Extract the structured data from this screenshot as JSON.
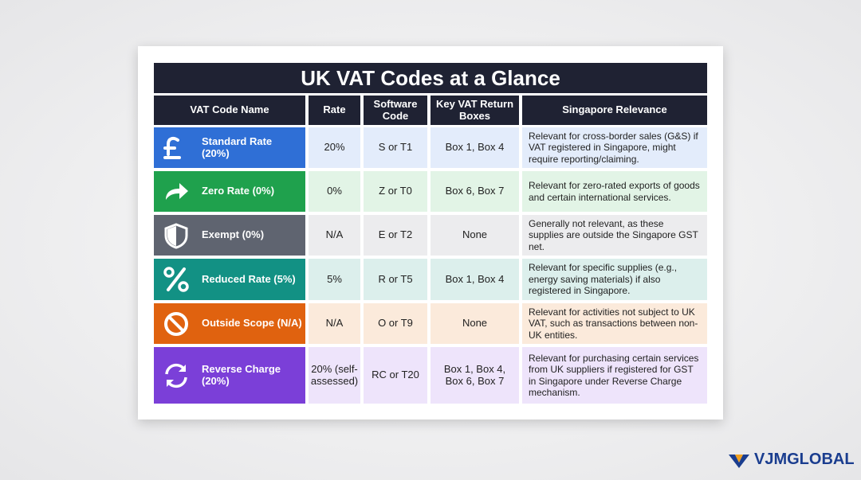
{
  "title": "UK VAT Codes at a Glance",
  "table": {
    "headers": [
      "VAT Code Name",
      "Rate",
      "Software Code",
      "Key VAT Return Boxes",
      "Singapore Relevance"
    ],
    "rows": [
      [
        "Standard Rate (20%)",
        "20%",
        "S or T1",
        "Box 1, Box 4",
        "Relevant for cross-border sales (G&S) if VAT registered in Singapore, might require reporting/claiming."
      ],
      [
        "Zero Rate (0%)",
        "0%",
        "Z or T0",
        "Box 6, Box 7",
        "Relevant for zero-rated exports of goods and certain international services."
      ],
      [
        "Exempt (0%)",
        "N/A",
        "E or T2",
        "None",
        "Generally not relevant, as these supplies are outside the Singapore GST net."
      ],
      [
        "Reduced Rate (5%)",
        "5%",
        "R or T5",
        "Box 1, Box 4",
        "Relevant for specific supplies (e.g., energy saving materials) if also registered in Singapore."
      ],
      [
        "Outside Scope (N/A)",
        "N/A",
        "O or T9",
        "None",
        "Relevant for activities not subject to UK VAT, such as transactions between non-UK entities."
      ],
      [
        "Reverse Charge (20%)",
        "20% (self-assessed)",
        "RC or T20",
        "Box 1, Box 4, Box 6, Box 7",
        "Relevant for purchasing certain services from UK suppliers if registered for GST in Singapore under Reverse Charge mechanism."
      ]
    ]
  },
  "logo": "VJMGLOBAL"
}
